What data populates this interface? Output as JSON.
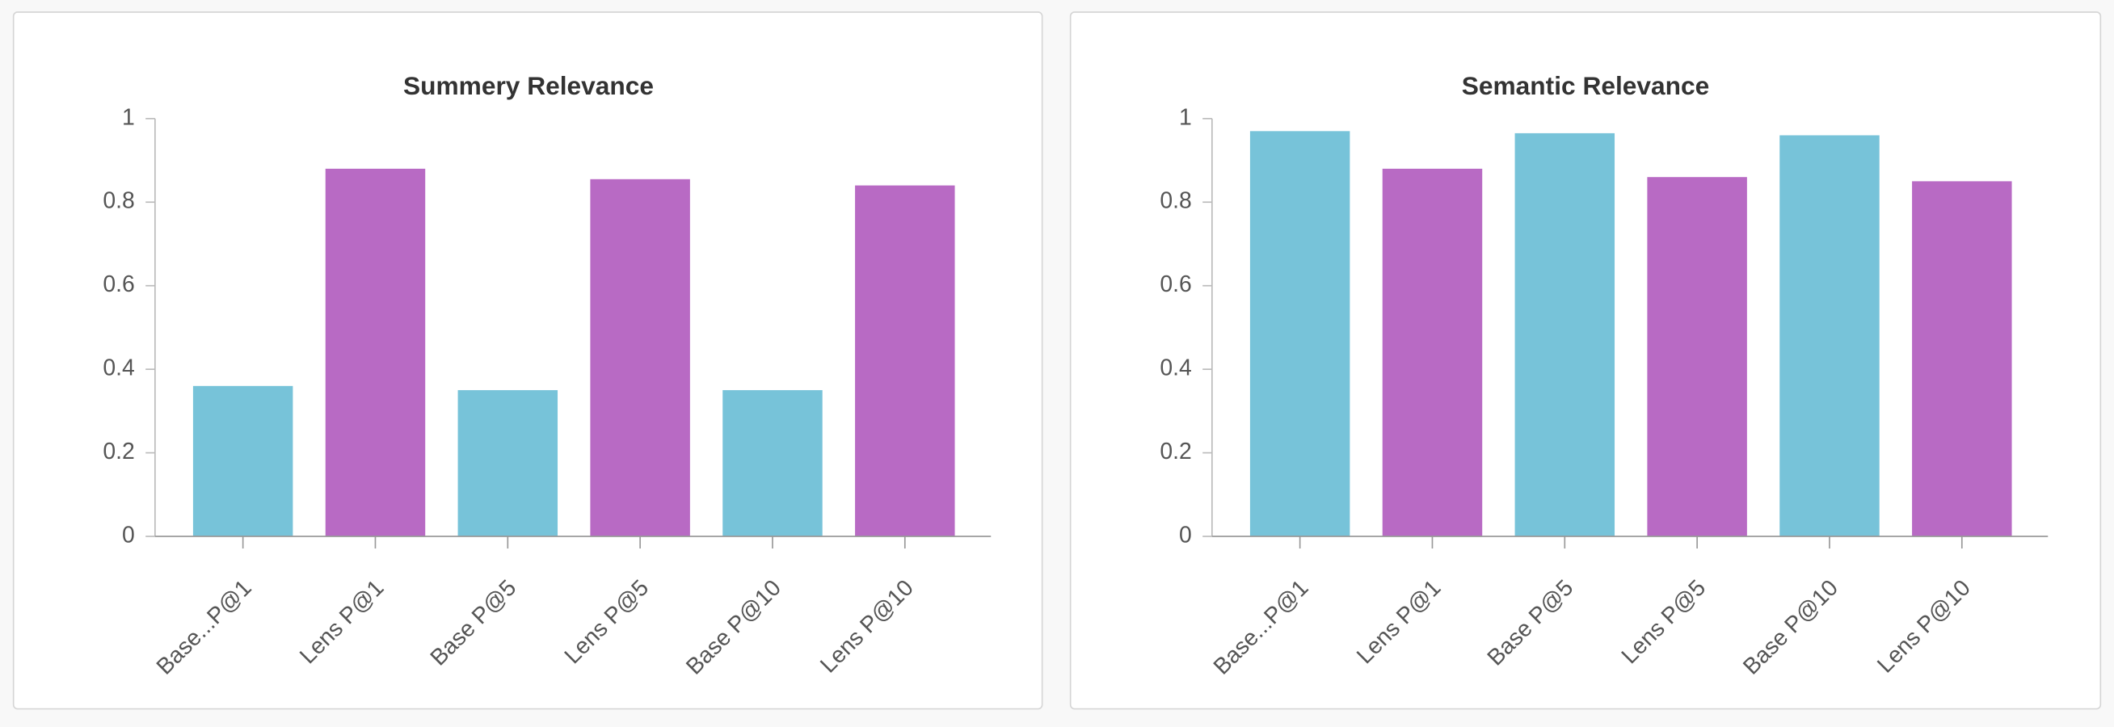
{
  "chart_data": [
    {
      "type": "bar",
      "title": "Summery Relevance",
      "categories": [
        "Base...P@1",
        "Lens P@1",
        "Base P@5",
        "Lens P@5",
        "Base P@10",
        "Lens P@10"
      ],
      "values": [
        0.36,
        0.88,
        0.35,
        0.855,
        0.35,
        0.84
      ],
      "colors": [
        "#77c3d9",
        "#b86ac4",
        "#77c3d9",
        "#b86ac4",
        "#77c3d9",
        "#b86ac4"
      ],
      "ylim": [
        0,
        1
      ],
      "yticks": [
        0,
        0.2,
        0.4,
        0.6,
        0.8,
        1
      ],
      "grid": false
    },
    {
      "type": "bar",
      "title": "Semantic Relevance",
      "categories": [
        "Base...P@1",
        "Lens P@1",
        "Base P@5",
        "Lens P@5",
        "Base P@10",
        "Lens P@10"
      ],
      "values": [
        0.97,
        0.88,
        0.965,
        0.86,
        0.96,
        0.85
      ],
      "colors": [
        "#77c3d9",
        "#b86ac4",
        "#77c3d9",
        "#b86ac4",
        "#77c3d9",
        "#b86ac4"
      ],
      "ylim": [
        0,
        1
      ],
      "yticks": [
        0,
        0.2,
        0.4,
        0.6,
        0.8,
        1
      ],
      "grid": false
    }
  ]
}
